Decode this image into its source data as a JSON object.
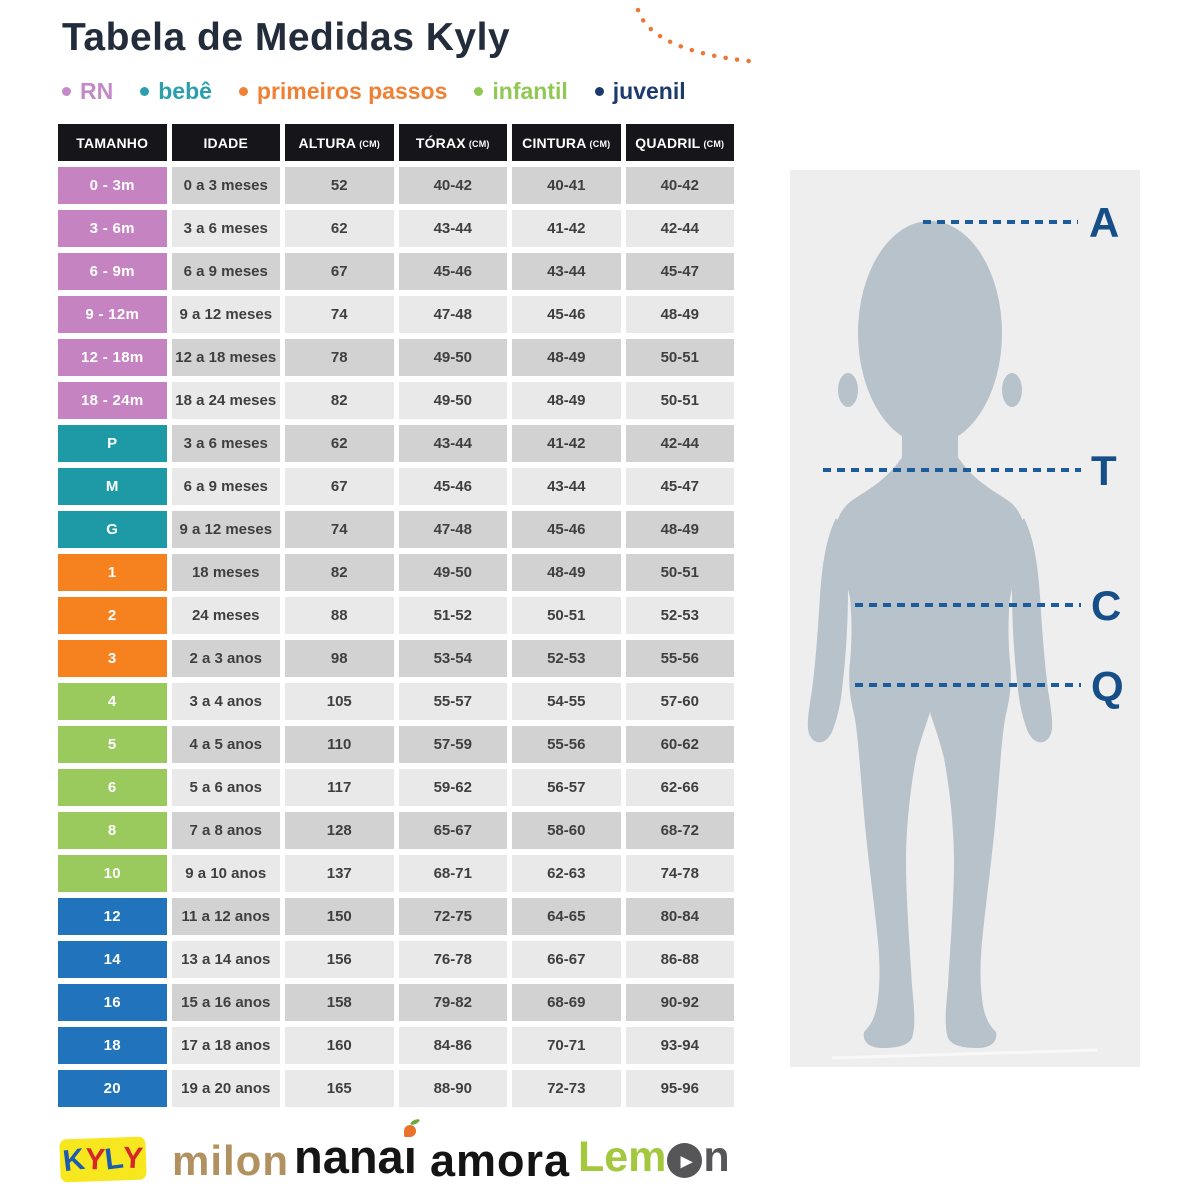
{
  "title": "Tabela de Medidas Kyly",
  "legend": {
    "items": [
      {
        "label": "RN",
        "color": "#c48ac8"
      },
      {
        "label": "bebê",
        "color": "#2b9fae"
      },
      {
        "label": "primeiros passos",
        "color": "#f08134"
      },
      {
        "label": "infantil",
        "color": "#90c853"
      },
      {
        "label": "juvenil",
        "color": "#1c3a6e"
      }
    ]
  },
  "table": {
    "headers": [
      {
        "label": "TAMANHO",
        "unit": ""
      },
      {
        "label": "IDADE",
        "unit": ""
      },
      {
        "label": "ALTURA",
        "unit": "(CM)"
      },
      {
        "label": "TÓRAX",
        "unit": "(CM)"
      },
      {
        "label": "CINTURA",
        "unit": "(CM)"
      },
      {
        "label": "QUADRIL",
        "unit": "(CM)"
      }
    ],
    "group_colors": {
      "rn": "#c584c1",
      "bebe": "#1d9aa6",
      "pp": "#f5821f",
      "infantil": "#9aca5e",
      "juvenil": "#2173bc"
    },
    "row_shades": {
      "dark": "#d2d2d2",
      "light": "#e9e9e9"
    },
    "header_bg": "#16161a",
    "rows": [
      {
        "size": "0 - 3m",
        "group": "rn",
        "shade": "dark",
        "idade": "0 a 3 meses",
        "altura": "52",
        "torax": "40-42",
        "cintura": "40-41",
        "quadril": "40-42"
      },
      {
        "size": "3 - 6m",
        "group": "rn",
        "shade": "light",
        "idade": "3 a 6 meses",
        "altura": "62",
        "torax": "43-44",
        "cintura": "41-42",
        "quadril": "42-44"
      },
      {
        "size": "6 - 9m",
        "group": "rn",
        "shade": "dark",
        "idade": "6 a 9 meses",
        "altura": "67",
        "torax": "45-46",
        "cintura": "43-44",
        "quadril": "45-47"
      },
      {
        "size": "9 - 12m",
        "group": "rn",
        "shade": "light",
        "idade": "9 a 12 meses",
        "altura": "74",
        "torax": "47-48",
        "cintura": "45-46",
        "quadril": "48-49"
      },
      {
        "size": "12 - 18m",
        "group": "rn",
        "shade": "dark",
        "idade": "12 a 18 meses",
        "altura": "78",
        "torax": "49-50",
        "cintura": "48-49",
        "quadril": "50-51"
      },
      {
        "size": "18 - 24m",
        "group": "rn",
        "shade": "light",
        "idade": "18 a 24 meses",
        "altura": "82",
        "torax": "49-50",
        "cintura": "48-49",
        "quadril": "50-51"
      },
      {
        "size": "P",
        "group": "bebe",
        "shade": "dark",
        "idade": "3 a 6 meses",
        "altura": "62",
        "torax": "43-44",
        "cintura": "41-42",
        "quadril": "42-44"
      },
      {
        "size": "M",
        "group": "bebe",
        "shade": "light",
        "idade": "6 a 9 meses",
        "altura": "67",
        "torax": "45-46",
        "cintura": "43-44",
        "quadril": "45-47"
      },
      {
        "size": "G",
        "group": "bebe",
        "shade": "dark",
        "idade": "9 a 12 meses",
        "altura": "74",
        "torax": "47-48",
        "cintura": "45-46",
        "quadril": "48-49"
      },
      {
        "size": "1",
        "group": "pp",
        "shade": "dark",
        "idade": "18 meses",
        "altura": "82",
        "torax": "49-50",
        "cintura": "48-49",
        "quadril": "50-51"
      },
      {
        "size": "2",
        "group": "pp",
        "shade": "light",
        "idade": "24 meses",
        "altura": "88",
        "torax": "51-52",
        "cintura": "50-51",
        "quadril": "52-53"
      },
      {
        "size": "3",
        "group": "pp",
        "shade": "dark",
        "idade": "2 a 3 anos",
        "altura": "98",
        "torax": "53-54",
        "cintura": "52-53",
        "quadril": "55-56"
      },
      {
        "size": "4",
        "group": "infantil",
        "shade": "light",
        "idade": "3 a 4 anos",
        "altura": "105",
        "torax": "55-57",
        "cintura": "54-55",
        "quadril": "57-60"
      },
      {
        "size": "5",
        "group": "infantil",
        "shade": "dark",
        "idade": "4 a 5 anos",
        "altura": "110",
        "torax": "57-59",
        "cintura": "55-56",
        "quadril": "60-62"
      },
      {
        "size": "6",
        "group": "infantil",
        "shade": "light",
        "idade": "5 a 6 anos",
        "altura": "117",
        "torax": "59-62",
        "cintura": "56-57",
        "quadril": "62-66"
      },
      {
        "size": "8",
        "group": "infantil",
        "shade": "dark",
        "idade": "7 a 8 anos",
        "altura": "128",
        "torax": "65-67",
        "cintura": "58-60",
        "quadril": "68-72"
      },
      {
        "size": "10",
        "group": "infantil",
        "shade": "light",
        "idade": "9 a 10 anos",
        "altura": "137",
        "torax": "68-71",
        "cintura": "62-63",
        "quadril": "74-78"
      },
      {
        "size": "12",
        "group": "juvenil",
        "shade": "dark",
        "idade": "11 a 12 anos",
        "altura": "150",
        "torax": "72-75",
        "cintura": "64-65",
        "quadril": "80-84"
      },
      {
        "size": "14",
        "group": "juvenil",
        "shade": "light",
        "idade": "13 a 14 anos",
        "altura": "156",
        "torax": "76-78",
        "cintura": "66-67",
        "quadril": "86-88"
      },
      {
        "size": "16",
        "group": "juvenil",
        "shade": "dark",
        "idade": "15 a 16 anos",
        "altura": "158",
        "torax": "79-82",
        "cintura": "68-69",
        "quadril": "90-92"
      },
      {
        "size": "18",
        "group": "juvenil",
        "shade": "light",
        "idade": "17 a 18 anos",
        "altura": "160",
        "torax": "84-86",
        "cintura": "70-71",
        "quadril": "93-94"
      },
      {
        "size": "20",
        "group": "juvenil",
        "shade": "light",
        "idade": "19 a 20 anos",
        "altura": "165",
        "torax": "88-90",
        "cintura": "72-73",
        "quadril": "95-96"
      }
    ]
  },
  "diagram": {
    "labels": [
      "A",
      "T",
      "C",
      "Q"
    ],
    "line_color": "#1d5c9b",
    "label_color": "#164f88",
    "body_color": "#b7c2ca",
    "panel_color": "#eeeeee"
  },
  "decor": {
    "arc_color": "#e8793a"
  },
  "footer_logos": {
    "kyly": {
      "text": "KYLY",
      "letter_colors": [
        "#1b5cb0",
        "#d6252b",
        "#1b5cb0",
        "#d6252b"
      ],
      "bg": "#f7e71f"
    },
    "milon": {
      "text": "milon",
      "color": "#b29160"
    },
    "nanai": {
      "text": "nanai",
      "base": "nana",
      "tail": "ı",
      "color": "#151515",
      "accent_color": "#e8712c",
      "leaf_color": "#6aaa3c"
    },
    "amora": {
      "text": "amora",
      "color": "#141414"
    },
    "lemon": {
      "pre": "Lem",
      "post": "n",
      "green": "#a3c83d",
      "dark": "#565658",
      "arrow": "▸"
    }
  }
}
